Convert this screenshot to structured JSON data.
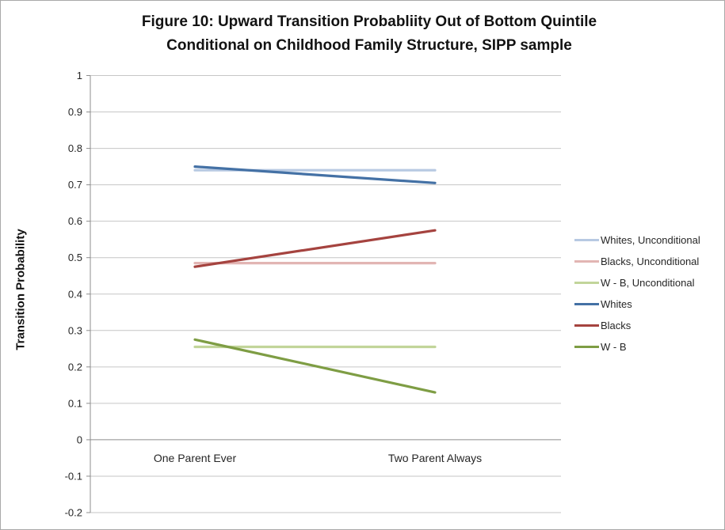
{
  "figure": {
    "title_line1": "Figure 10: Upward Transition Probabliity Out of Bottom Quintile",
    "title_line2": "Conditional on Childhood Family Structure, SIPP sample"
  },
  "y_axis": {
    "label": "Transition Probability",
    "tick_labels": [
      "1",
      "0.9",
      "0.8",
      "0.7",
      "0.6",
      "0.5",
      "0.4",
      "0.3",
      "0.2",
      "0.1",
      "0",
      "-0.1",
      "-0.2"
    ]
  },
  "chart_data": {
    "type": "line",
    "title": "Figure 10: Upward Transition Probabliity Out of Bottom Quintile Conditional on Childhood Family Structure, SIPP sample",
    "categories": [
      "One Parent Ever",
      "Two Parent Always"
    ],
    "series": [
      {
        "name": "Whites, Unconditional",
        "values": [
          0.74,
          0.74
        ],
        "color": "#b7c9e2"
      },
      {
        "name": "Blacks, Unconditional",
        "values": [
          0.485,
          0.485
        ],
        "color": "#e2b5b3"
      },
      {
        "name": "W - B, Unconditional",
        "values": [
          0.255,
          0.255
        ],
        "color": "#c2d59a"
      },
      {
        "name": "Whites",
        "values": [
          0.75,
          0.705
        ],
        "color": "#4471a5"
      },
      {
        "name": "Blacks",
        "values": [
          0.475,
          0.575
        ],
        "color": "#a5433f"
      },
      {
        "name": "W - B",
        "values": [
          0.275,
          0.13
        ],
        "color": "#7e9d44"
      }
    ],
    "xlabel": "",
    "ylabel": "Transition Probability",
    "ylim": [
      -0.2,
      1.0
    ],
    "ytick_step": 0.1,
    "grid": true,
    "legend_position": "right"
  },
  "colors": {
    "gridline": "#c6c6c6",
    "axis_line": "#8c8c8c",
    "tick_text": "#262626"
  }
}
